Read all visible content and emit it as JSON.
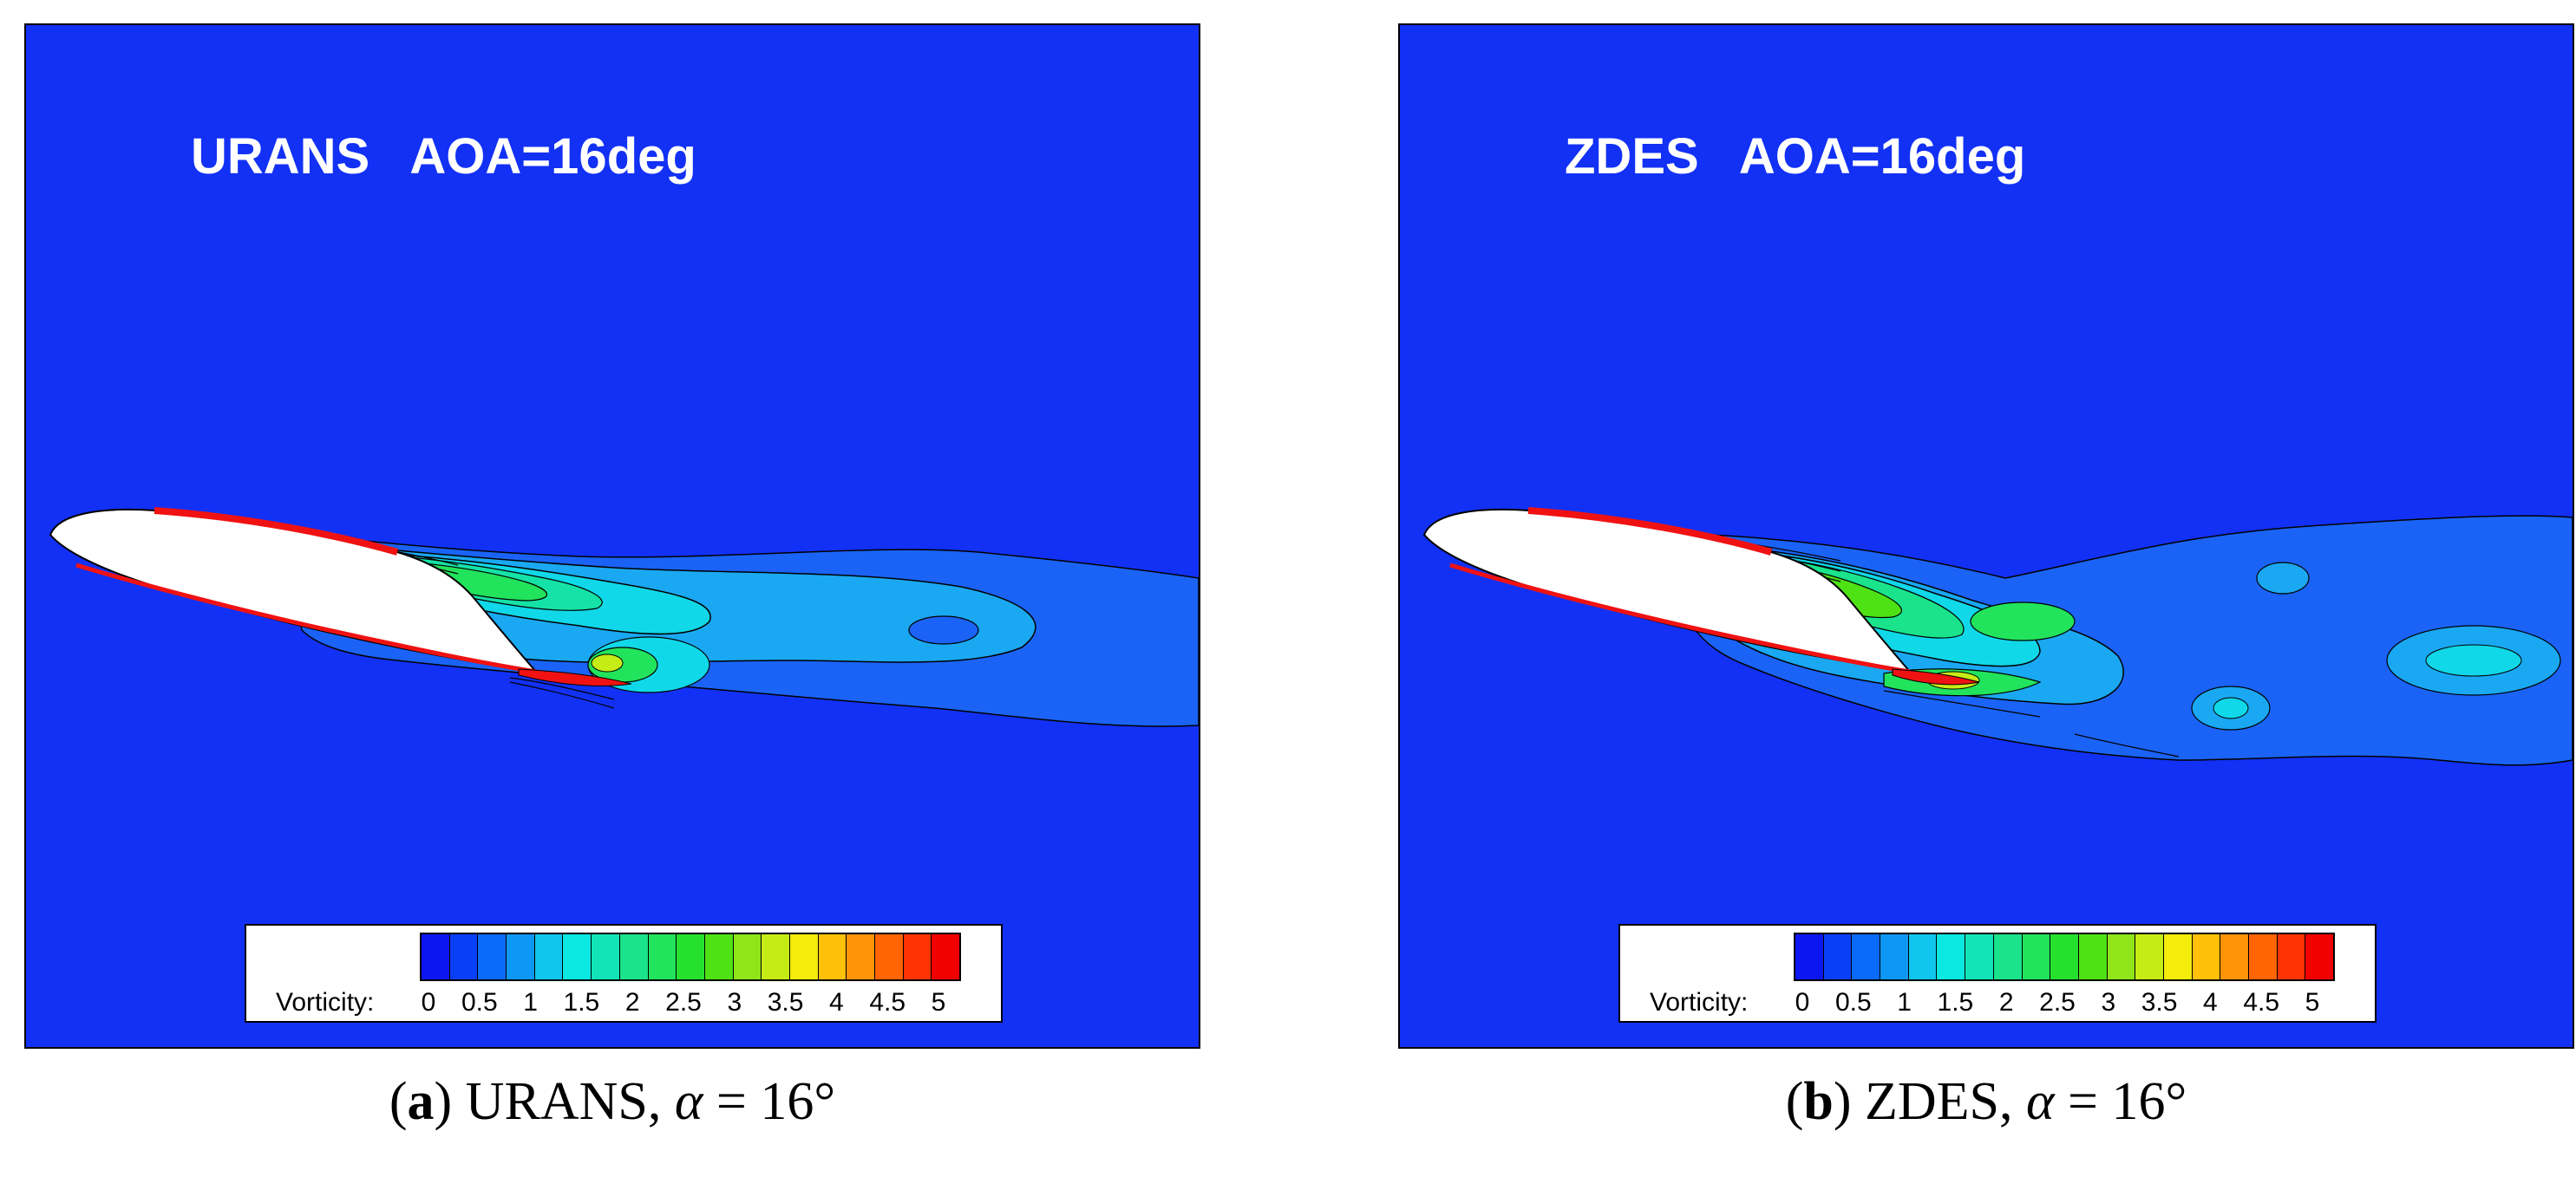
{
  "panels": [
    {
      "label": "URANS   AOA=16deg",
      "caption": {
        "letter": "a",
        "text": " URANS, ",
        "symbol": "α",
        "value": " = 16°"
      }
    },
    {
      "label": "ZDES   AOA=16deg",
      "caption": {
        "letter": "b",
        "text": " ZDES, ",
        "symbol": "α",
        "value": " = 16°"
      }
    }
  ],
  "legend": {
    "title": "Vorticity:",
    "ticks": [
      "0",
      "0.5",
      "1",
      "1.5",
      "2",
      "2.5",
      "3",
      "3.5",
      "4",
      "4.5",
      "5"
    ],
    "colors": [
      "#0b16f0",
      "#0a3ff8",
      "#0a6af9",
      "#0d98f6",
      "#10c6ee",
      "#0ae8e1",
      "#12e4b8",
      "#1ae38c",
      "#22e35c",
      "#25e12e",
      "#4ee215",
      "#8fe51a",
      "#c6ec16",
      "#f3ec0c",
      "#ffc00a",
      "#ff9408",
      "#ff6405",
      "#ff3403",
      "#f00000"
    ],
    "range": [
      0,
      5
    ]
  },
  "colors": {
    "background": "#1231f5",
    "airfoil": "#ffffff",
    "outline": "#000000",
    "edge": "#f01212"
  }
}
